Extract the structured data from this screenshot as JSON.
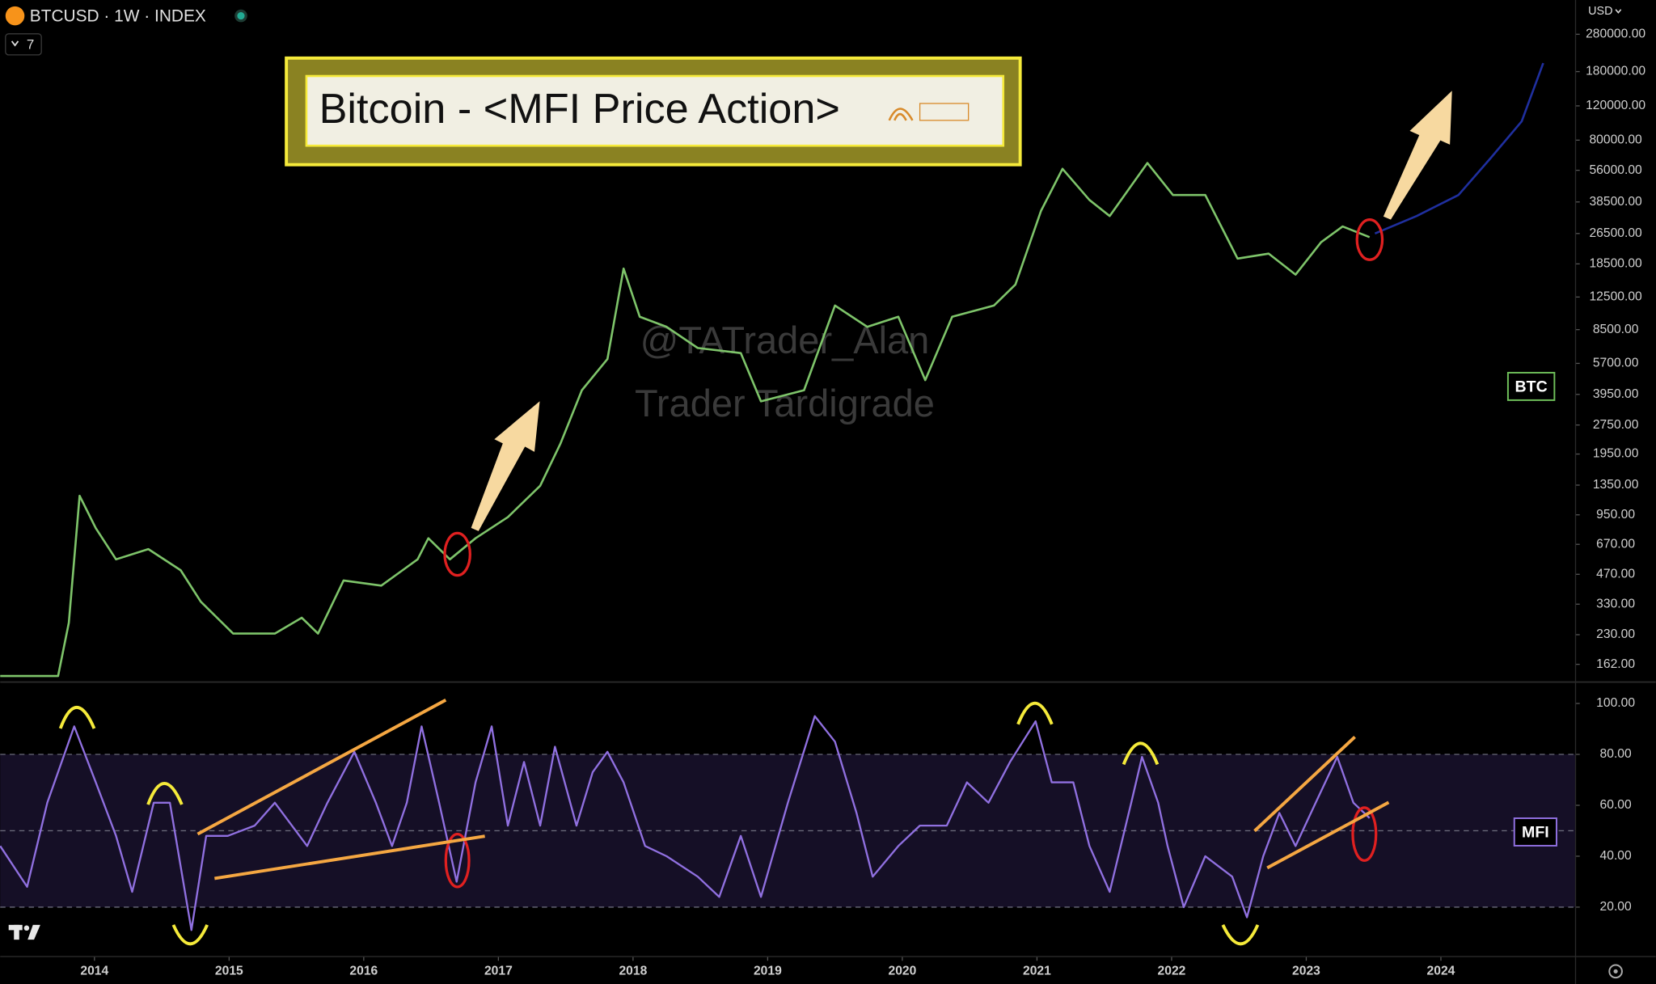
{
  "header": {
    "symbol": "BTCUSD · 1W · INDEX",
    "indicator_count": "7",
    "currency": "USD"
  },
  "watermark": [
    "@TATrader_Alan",
    "Trader Tardigrade"
  ],
  "chart_data": [
    {
      "type": "line",
      "title": "Bitcoin - <MFI Price Action>",
      "log_scale": true,
      "xlim": [
        2013.3,
        2025.0
      ],
      "ylim": [
        133,
        420000
      ],
      "yticks": [
        {
          "value": 280000,
          "label": "280000.00"
        },
        {
          "value": 180000,
          "label": "180000.00"
        },
        {
          "value": 120000,
          "label": "120000.00"
        },
        {
          "value": 80000,
          "label": "80000.00"
        },
        {
          "value": 56000,
          "label": "56000.00"
        },
        {
          "value": 38500,
          "label": "38500.00"
        },
        {
          "value": 26500,
          "label": "26500.00"
        },
        {
          "value": 18500,
          "label": "18500.00"
        },
        {
          "value": 12500,
          "label": "12500.00"
        },
        {
          "value": 8500,
          "label": "8500.00"
        },
        {
          "value": 5700,
          "label": "5700.00"
        },
        {
          "value": 3950,
          "label": "3950.00"
        },
        {
          "value": 2750,
          "label": "2750.00"
        },
        {
          "value": 1950,
          "label": "1950.00"
        },
        {
          "value": 1350,
          "label": "1350.00"
        },
        {
          "value": 950,
          "label": "950.00"
        },
        {
          "value": 670,
          "label": "670.00"
        },
        {
          "value": 470,
          "label": "470.00"
        },
        {
          "value": 330,
          "label": "330.00"
        },
        {
          "value": 230,
          "label": "230.00"
        },
        {
          "value": 162,
          "label": "162.00"
        }
      ],
      "series": [
        {
          "name": "BTC",
          "color": "#7ec46a",
          "x": [
            2013.3,
            2013.73,
            2013.81,
            2013.89,
            2014.01,
            2014.16,
            2014.4,
            2014.64,
            2014.79,
            2015.03,
            2015.34,
            2015.54,
            2015.66,
            2015.85,
            2016.13,
            2016.4,
            2016.48,
            2016.64,
            2016.83,
            2017.07,
            2017.31,
            2017.46,
            2017.62,
            2017.81,
            2017.93,
            2018.05,
            2018.25,
            2018.48,
            2018.8,
            2018.95,
            2019.27,
            2019.5,
            2019.74,
            2019.97,
            2020.17,
            2020.37,
            2020.68,
            2020.84,
            2021.03,
            2021.19,
            2021.39,
            2021.54,
            2021.82,
            2022.01,
            2022.25,
            2022.49,
            2022.72,
            2022.92,
            2023.11,
            2023.27,
            2023.47
          ],
          "values": [
            141,
            141,
            265,
            1190,
            812,
            561,
            633,
            493,
            340,
            233,
            233,
            281,
            233,
            437,
            411,
            561,
            720,
            561,
            720,
            925,
            1340,
            2200,
            4150,
            6000,
            17500,
            9900,
            8780,
            6840,
            6440,
            3640,
            4150,
            11300,
            8780,
            9900,
            4680,
            9900,
            11300,
            14500,
            34600,
            57000,
            39400,
            32600,
            61000,
            41800,
            41800,
            19700,
            20900,
            16300,
            23900,
            28800,
            25400
          ]
        },
        {
          "color": "#1f2f9e",
          "x": [
            2023.51,
            2023.82,
            2024.13,
            2024.37,
            2024.6,
            2024.76
          ],
          "values": [
            26500,
            32600,
            41800,
            64800,
            100000,
            199000
          ]
        }
      ]
    },
    {
      "type": "line",
      "xlim": [
        2013.3,
        2025.0
      ],
      "ylim": [
        1,
        108
      ],
      "yticks": [
        {
          "value": 100,
          "label": "100.00"
        },
        {
          "value": 80,
          "label": "80.00"
        },
        {
          "value": 60,
          "label": "60.00"
        },
        {
          "value": 40,
          "label": "40.00"
        },
        {
          "value": 20,
          "label": "20.00"
        }
      ],
      "xticks": [
        2014,
        2015,
        2016,
        2017,
        2018,
        2019,
        2020,
        2021,
        2022,
        2023,
        2024
      ],
      "band": [
        20,
        80
      ],
      "band_color": "#150f26",
      "levels": [
        80,
        50,
        20
      ],
      "series": [
        {
          "name": "MFI",
          "color": "#9070e0",
          "x": [
            2013.3,
            2013.5,
            2013.65,
            2013.85,
            2014.01,
            2014.16,
            2014.28,
            2014.44,
            2014.56,
            2014.72,
            2014.83,
            2014.99,
            2015.19,
            2015.34,
            2015.58,
            2015.73,
            2015.93,
            2016.09,
            2016.21,
            2016.32,
            2016.43,
            2016.56,
            2016.69,
            2016.83,
            2016.95,
            2017.07,
            2017.19,
            2017.31,
            2017.42,
            2017.58,
            2017.7,
            2017.81,
            2017.93,
            2018.09,
            2018.25,
            2018.48,
            2018.64,
            2018.8,
            2018.95,
            2019.15,
            2019.35,
            2019.5,
            2019.66,
            2019.78,
            2019.97,
            2020.13,
            2020.33,
            2020.48,
            2020.64,
            2020.8,
            2020.99,
            2021.11,
            2021.27,
            2021.39,
            2021.54,
            2021.7,
            2021.78,
            2021.9,
            2021.97,
            2022.09,
            2022.25,
            2022.45,
            2022.56,
            2022.68,
            2022.8,
            2022.92,
            2023.07,
            2023.23,
            2023.35,
            2023.47
          ],
          "values": [
            44,
            28,
            61,
            91,
            69,
            48,
            26,
            61,
            61,
            11,
            48,
            48,
            52,
            61,
            44,
            61,
            81,
            61,
            44,
            61,
            91,
            61,
            30,
            69,
            91,
            52,
            77,
            52,
            83,
            52,
            73,
            81,
            69,
            44,
            40,
            32,
            24,
            48,
            24,
            61,
            95,
            85,
            57,
            32,
            44,
            52,
            52,
            69,
            61,
            77,
            93,
            69,
            69,
            44,
            26,
            61,
            79,
            61,
            44,
            20,
            40,
            32,
            16,
            40,
            57,
            44,
            61,
            79,
            61,
            55
          ]
        }
      ]
    }
  ]
}
